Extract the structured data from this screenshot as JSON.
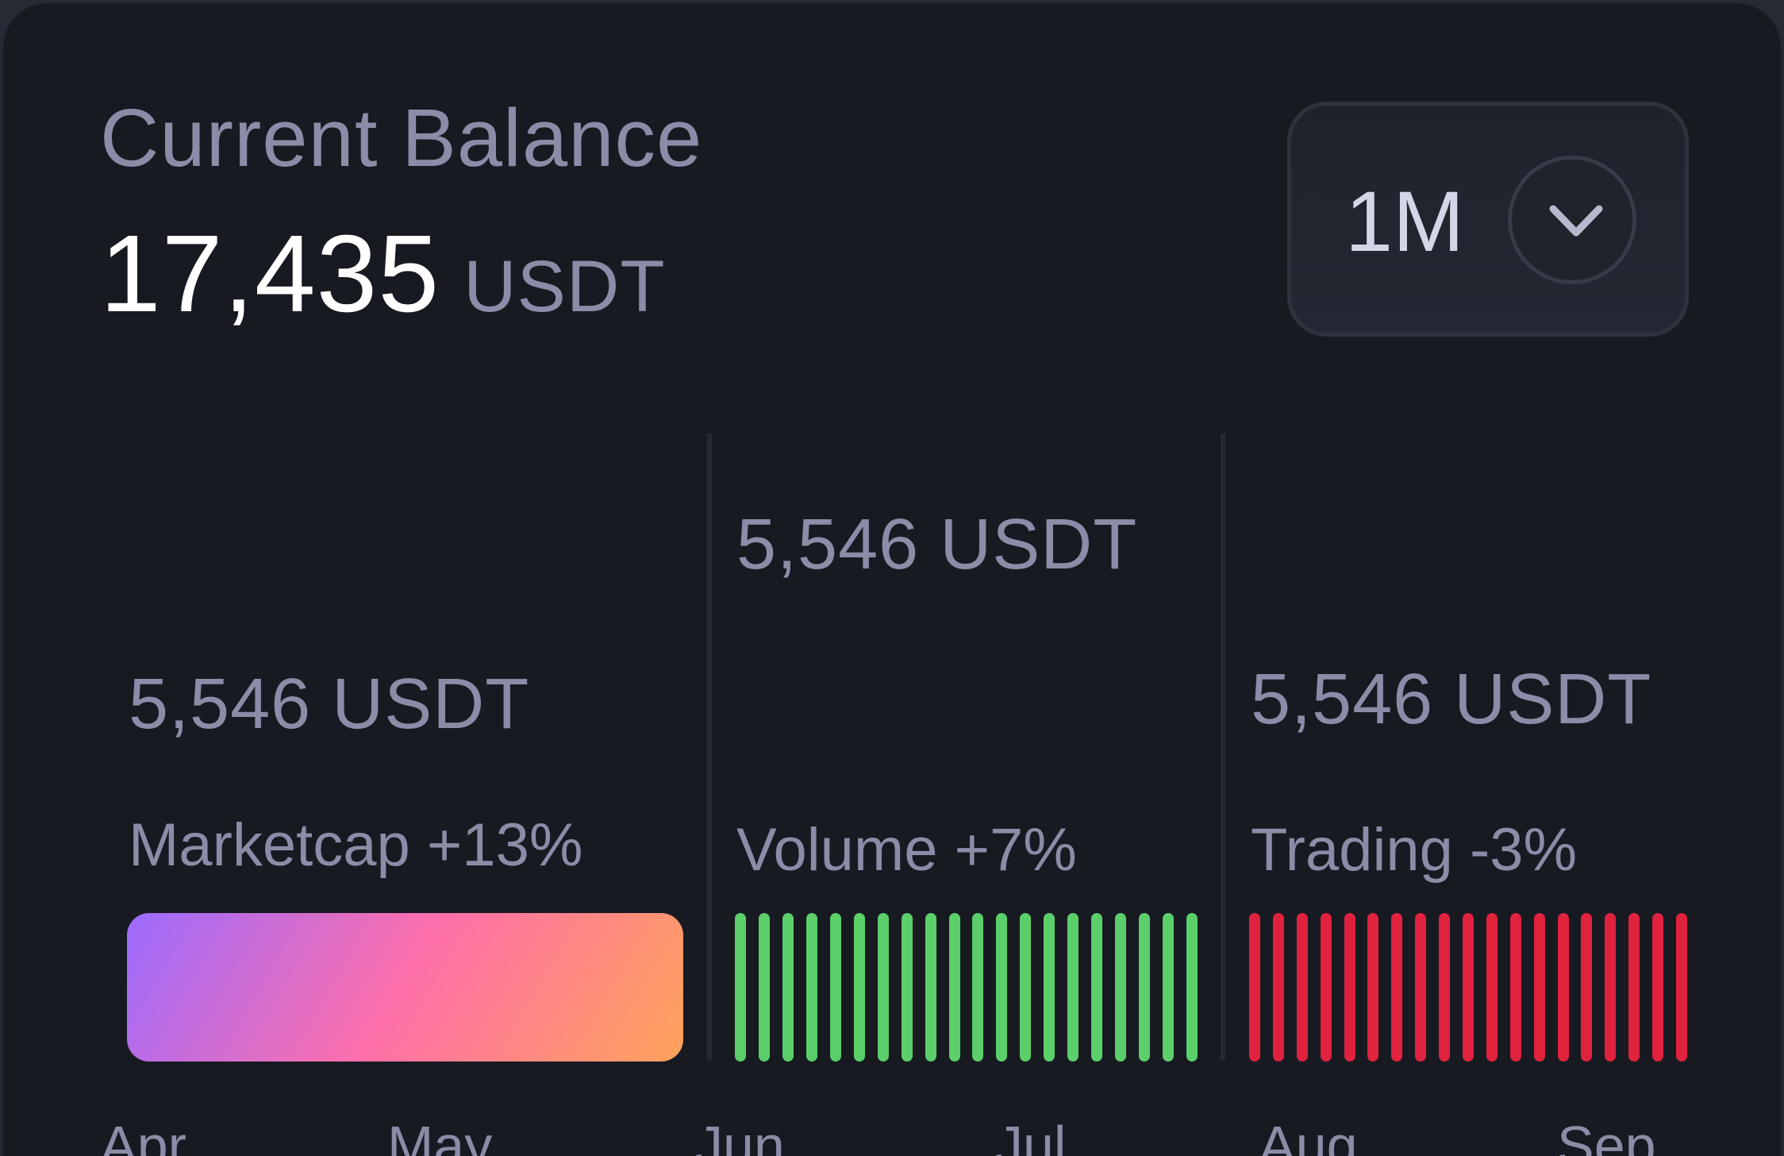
{
  "header": {
    "title": "Current Balance",
    "balance_value": "17,435",
    "balance_unit": "USDT"
  },
  "period_selector": {
    "value": "1M",
    "icon": "chevron-down-icon"
  },
  "metrics": [
    {
      "amount": "5,546 USDT",
      "label": "Marketcap +13%",
      "visual": "gradient",
      "gradient_colors": [
        "#9c6bff",
        "#ff6fa9",
        "#ffa35a"
      ]
    },
    {
      "amount": "5,546 USDT",
      "label": "Volume +7%",
      "visual": "bars",
      "bar_count": 20,
      "color": "#5bcf6a"
    },
    {
      "amount": "5,546 USDT",
      "label": "Trading -3%",
      "visual": "bars",
      "bar_count": 19,
      "color": "#e0223f"
    }
  ],
  "months": [
    "Apr",
    "May",
    "Jun",
    "Jul",
    "Aug",
    "Sep"
  ]
}
